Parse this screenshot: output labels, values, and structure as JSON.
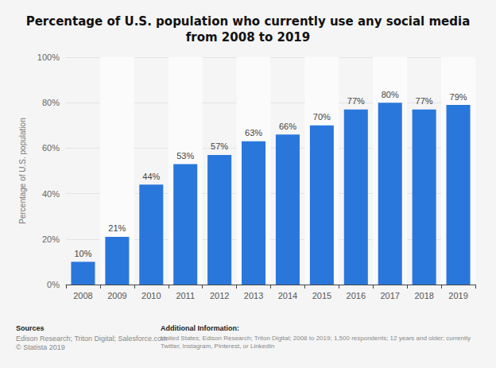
{
  "chart_data": {
    "type": "bar",
    "title": "Percentage of U.S. population who currently use any social media\nfrom 2008 to 2019",
    "y_label": "Percentage of U.S. population",
    "categories": [
      "2008",
      "2009",
      "2010",
      "2011",
      "2012",
      "2013",
      "2014",
      "2015",
      "2016",
      "2017",
      "2018",
      "2019"
    ],
    "values": [
      10,
      21,
      44,
      53,
      57,
      63,
      66,
      70,
      77,
      80,
      77,
      79
    ],
    "value_labels": [
      "10%",
      "21%",
      "44%",
      "53%",
      "57%",
      "63%",
      "66%",
      "70%",
      "77%",
      "80%",
      "77%",
      "79%"
    ],
    "data_labels": true,
    "color": "#2a77dc",
    "ylim": [
      0,
      100
    ],
    "yticks": [
      {
        "value": 0,
        "label": "0%"
      },
      {
        "value": 20,
        "label": "20%"
      },
      {
        "value": 40,
        "label": "40%"
      },
      {
        "value": 60,
        "label": "60%"
      },
      {
        "value": 80,
        "label": "80%"
      },
      {
        "value": 100,
        "label": "100%"
      }
    ],
    "grid": true,
    "sources_heading": "Sources",
    "sources": [
      "Edison Research; Triton Digital; Salesforce.com",
      "© Statista 2019"
    ],
    "additional_heading": "Additional Information:",
    "additional": [
      "United States; Edison Research; Triton Digital; 2008 to 2019; 1,500 respondents; 12 years and older; currently",
      "Twitter, Instagram, Pinterest, or LinkedIn"
    ]
  }
}
